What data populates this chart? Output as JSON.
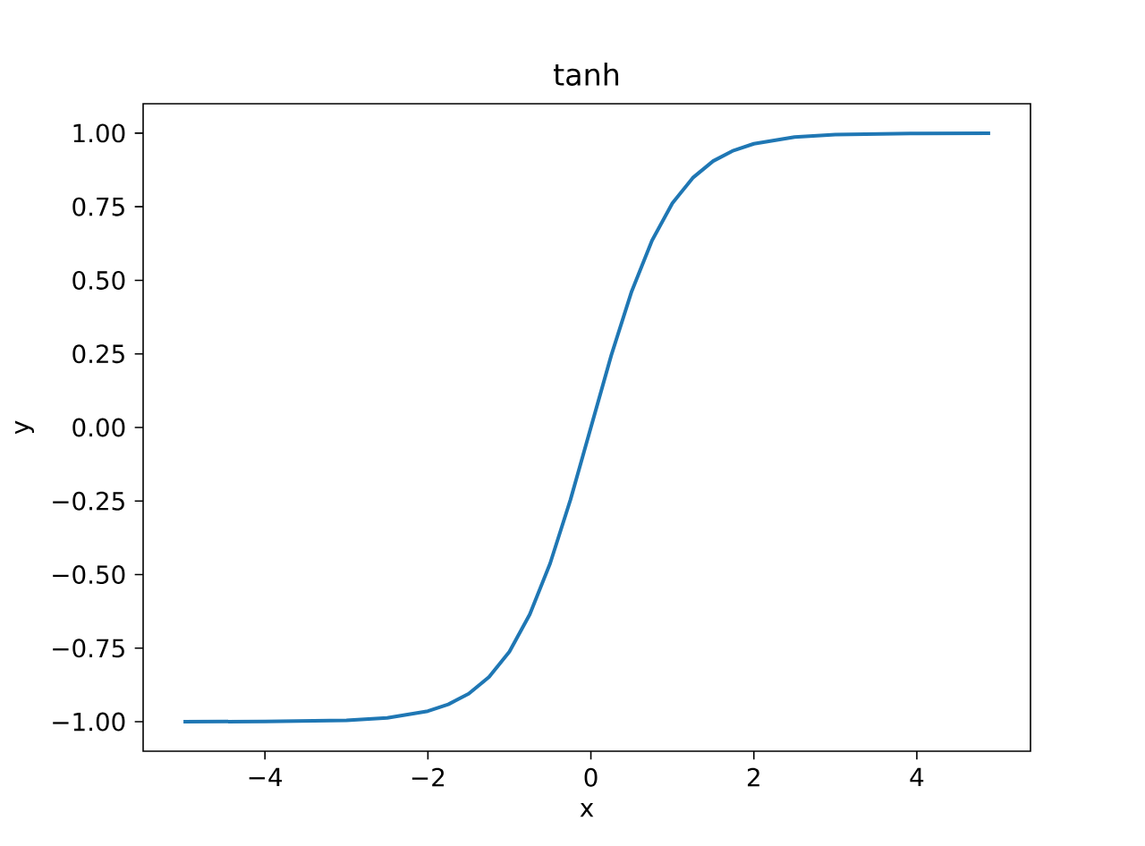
{
  "chart_data": {
    "type": "line",
    "title": "tanh",
    "xlabel": "x",
    "ylabel": "y",
    "x": [
      -5,
      -4,
      -3,
      -2.5,
      -2,
      -1.75,
      -1.5,
      -1.25,
      -1,
      -0.75,
      -0.5,
      -0.25,
      0,
      0.25,
      0.5,
      0.75,
      1,
      1.25,
      1.5,
      1.75,
      2,
      2.5,
      3,
      4,
      4.9
    ],
    "series": [
      {
        "color": "#1f77b4",
        "values": [
          -1.0,
          -0.999,
          -0.995,
          -0.987,
          -0.964,
          -0.941,
          -0.905,
          -0.848,
          -0.762,
          -0.635,
          -0.462,
          -0.245,
          0,
          0.245,
          0.462,
          0.635,
          0.762,
          0.848,
          0.905,
          0.941,
          0.964,
          0.987,
          0.995,
          0.999,
          1.0
        ]
      }
    ],
    "xlim": [
      -5.495,
      5.395
    ],
    "ylim": [
      -1.1,
      1.1
    ],
    "xticks": [
      {
        "value": -4,
        "label": "−4"
      },
      {
        "value": -2,
        "label": "−2"
      },
      0,
      2,
      4
    ],
    "yticks": [
      {
        "value": -1,
        "label": "−1.00"
      },
      {
        "value": -0.75,
        "label": "−0.75"
      },
      {
        "value": -0.5,
        "label": "−0.50"
      },
      {
        "value": -0.25,
        "label": "−0.25"
      },
      {
        "value": 0,
        "label": "0.00"
      },
      {
        "value": 0.25,
        "label": "0.25"
      },
      {
        "value": 0.5,
        "label": "0.50"
      },
      {
        "value": 0.75,
        "label": "0.75"
      },
      {
        "value": 1,
        "label": "1.00"
      }
    ]
  }
}
